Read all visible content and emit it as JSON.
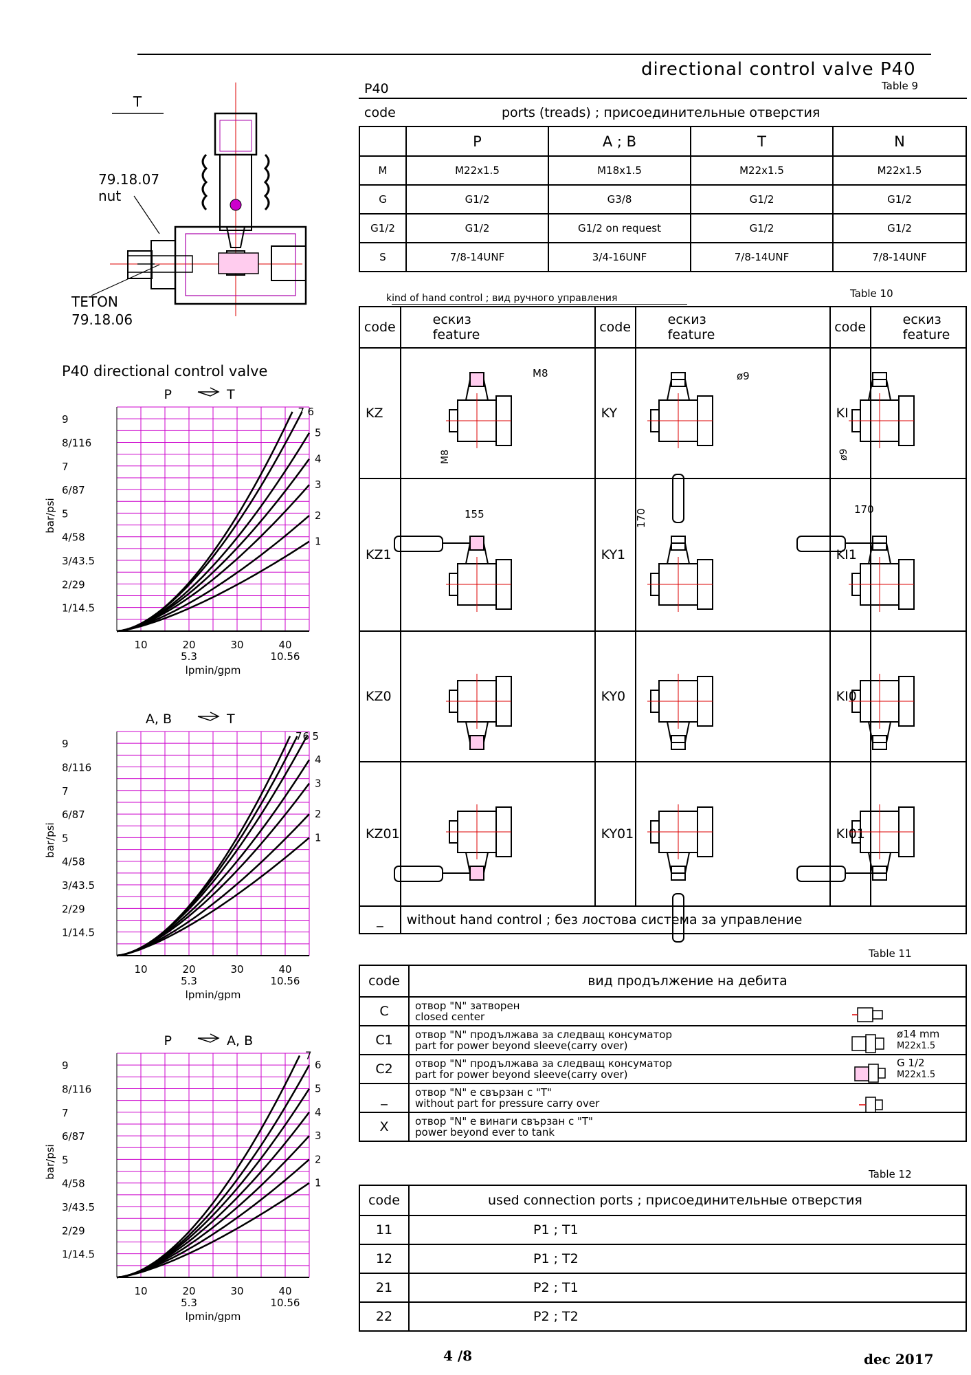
{
  "header": {
    "title": "directional control valve P40",
    "model": "P40",
    "table9_label": "Table 9"
  },
  "valve_drawing": {
    "view_label": "T",
    "nut_code": "79.18.07",
    "nut_label": "nut",
    "teton_label": "TETON",
    "teton_code": "79.18.06"
  },
  "chart_section_title": "P40 directional control valve",
  "table9": {
    "code_header": "code",
    "ports_header": "ports (treads) ;  присоединительные отверстия",
    "columns": [
      "P",
      "A ; B",
      "T",
      "N"
    ],
    "rows": [
      {
        "code": "M",
        "cells": [
          "M22x1.5",
          "M18x1.5",
          "M22x1.5",
          "M22x1.5"
        ]
      },
      {
        "code": "G",
        "cells": [
          "G1/2",
          "G3/8",
          "G1/2",
          "G1/2"
        ]
      },
      {
        "code": "G1/2",
        "cells": [
          "G1/2",
          "G1/2 on request",
          "G1/2",
          "G1/2"
        ]
      },
      {
        "code": "S",
        "cells": [
          "7/8-14UNF",
          "3/4-16UNF",
          "7/8-14UNF",
          "7/8-14UNF"
        ]
      }
    ]
  },
  "table10": {
    "label": "Table 10",
    "caption": "kind of hand control ;  вид ручного  управления",
    "col_code": "code",
    "col_sketch": "ескиз",
    "col_feature": "feature",
    "rows": [
      [
        "KZ",
        "KY",
        "KI"
      ],
      [
        "KZ1",
        "KY1",
        "KI1"
      ],
      [
        "KZ0",
        "KY0",
        "KI0"
      ],
      [
        "KZ01",
        "KY01",
        "KI01"
      ]
    ],
    "dims": {
      "m8": "M8",
      "d9": "ø9",
      "d9_v": "ø9",
      "l155": "155",
      "l170": "170",
      "l170_i": "170",
      "m8_v": "M8"
    },
    "without_code": "_",
    "without_text": "without hand control ;          без лостова система за управление"
  },
  "table11": {
    "label": "Table 11",
    "code_header": "code",
    "title": "вид продължение на дебита",
    "rows": [
      {
        "code": "C",
        "line1": "отвор \"N\" затворен",
        "line2": "closed center",
        "spec1": "",
        "spec2": ""
      },
      {
        "code": "C1",
        "line1": "отвор \"N\" продължава за следващ консуматор",
        "line2": "part for power beyond sleeve(carry over)",
        "spec1": "ø14 mm",
        "spec2": "M22x1.5"
      },
      {
        "code": "C2",
        "line1": "отвор \"N\" продължава за следващ консуматор",
        "line2": "part for power beyond sleeve(carry over)",
        "spec1": "G 1/2",
        "spec2": "M22x1.5"
      },
      {
        "code": "_",
        "line1": "отвор \"N\" е свързан с \"T\"",
        "line2": "without part for pressure carry over",
        "spec1": "",
        "spec2": ""
      },
      {
        "code": "X",
        "line1": "отвор \"N\" е винаги свързан с \"T\"",
        "line2": "power beyond ever to tank",
        "spec1": "",
        "spec2": ""
      }
    ]
  },
  "table12": {
    "label": "Table 12",
    "code_header": "code",
    "title": "used connection ports ;  присоединительные отверстия",
    "rows": [
      {
        "code": "11",
        "ports": "P1 ; T1"
      },
      {
        "code": "12",
        "ports": "P1 ; T2"
      },
      {
        "code": "21",
        "ports": "P2 ; T1"
      },
      {
        "code": "22",
        "ports": "P2 ; T2"
      }
    ]
  },
  "chart_data": [
    {
      "type": "line",
      "title": "P → T",
      "title_from": "P",
      "title_to": "T",
      "xlabel": "lpmin/gpm",
      "ylabel": "bar/psi",
      "x_ticks": [
        "10",
        "20",
        "30",
        "40"
      ],
      "x_ticks_gpm": [
        "5.3",
        "10.56"
      ],
      "y_ticks": [
        "1/14.5",
        "2/29",
        "3/43.5",
        "4/58",
        "5",
        "6/87",
        "7",
        "8/116",
        "9"
      ],
      "xlim": [
        5,
        45
      ],
      "ylim": [
        0,
        9.5
      ],
      "grid": true,
      "series": [
        {
          "name": "1",
          "x": [
            5,
            45
          ],
          "y": [
            0,
            3.8
          ],
          "curve": 1.4
        },
        {
          "name": "2",
          "x": [
            5,
            45
          ],
          "y": [
            0,
            4.9
          ],
          "curve": 1.45
        },
        {
          "name": "3",
          "x": [
            5,
            45
          ],
          "y": [
            0,
            6.2
          ],
          "curve": 1.5
        },
        {
          "name": "4",
          "x": [
            5,
            45
          ],
          "y": [
            0,
            7.3
          ],
          "curve": 1.55
        },
        {
          "name": "5",
          "x": [
            5,
            45
          ],
          "y": [
            0,
            8.4
          ],
          "curve": 1.6
        },
        {
          "name": "6",
          "x": [
            5,
            43.5
          ],
          "y": [
            0,
            9.3
          ],
          "curve": 1.65
        },
        {
          "name": "7",
          "x": [
            5,
            41.5
          ],
          "y": [
            0,
            9.3
          ],
          "curve": 1.7
        }
      ]
    },
    {
      "type": "line",
      "title": "A, B → T",
      "title_from": "A, B",
      "title_to": "T",
      "xlabel": "lpmin/gpm",
      "ylabel": "bar/psi",
      "x_ticks": [
        "10",
        "20",
        "30",
        "40"
      ],
      "x_ticks_gpm": [
        "5.3",
        "10.56"
      ],
      "y_ticks": [
        "1/14.5",
        "2/29",
        "3/43.5",
        "4/58",
        "5",
        "6/87",
        "7",
        "8/116",
        "9"
      ],
      "xlim": [
        5,
        45
      ],
      "ylim": [
        0,
        9.5
      ],
      "grid": true,
      "series": [
        {
          "name": "1",
          "x": [
            5,
            45
          ],
          "y": [
            0,
            5.0
          ],
          "curve": 1.4
        },
        {
          "name": "2",
          "x": [
            5,
            45
          ],
          "y": [
            0,
            6.0
          ],
          "curve": 1.45
        },
        {
          "name": "3",
          "x": [
            5,
            45
          ],
          "y": [
            0,
            7.3
          ],
          "curve": 1.5
        },
        {
          "name": "4",
          "x": [
            5,
            45
          ],
          "y": [
            0,
            8.3
          ],
          "curve": 1.55
        },
        {
          "name": "5",
          "x": [
            5,
            44.5
          ],
          "y": [
            0,
            9.3
          ],
          "curve": 1.6
        },
        {
          "name": "6",
          "x": [
            5,
            42.5
          ],
          "y": [
            0,
            9.3
          ],
          "curve": 1.65
        },
        {
          "name": "7",
          "x": [
            5,
            41
          ],
          "y": [
            0,
            9.3
          ],
          "curve": 1.7
        }
      ]
    },
    {
      "type": "line",
      "title": "P → A, B",
      "title_from": "P",
      "title_to": "A, B",
      "xlabel": "lpmin/gpm",
      "ylabel": "bar/psi",
      "x_ticks": [
        "10",
        "20",
        "30",
        "40"
      ],
      "x_ticks_gpm": [
        "5.3",
        "10.56"
      ],
      "y_ticks": [
        "1/14.5",
        "2/29",
        "3/43.5",
        "4/58",
        "5",
        "6/87",
        "7",
        "8/116",
        "9"
      ],
      "xlim": [
        5,
        45
      ],
      "ylim": [
        0,
        9.5
      ],
      "grid": true,
      "series": [
        {
          "name": "1",
          "x": [
            5,
            45
          ],
          "y": [
            0,
            4.0
          ],
          "curve": 1.4
        },
        {
          "name": "2",
          "x": [
            5,
            45
          ],
          "y": [
            0,
            5.0
          ],
          "curve": 1.45
        },
        {
          "name": "3",
          "x": [
            5,
            45
          ],
          "y": [
            0,
            6.0
          ],
          "curve": 1.5
        },
        {
          "name": "4",
          "x": [
            5,
            45
          ],
          "y": [
            0,
            7.0
          ],
          "curve": 1.55
        },
        {
          "name": "5",
          "x": [
            5,
            45
          ],
          "y": [
            0,
            8.0
          ],
          "curve": 1.6
        },
        {
          "name": "6",
          "x": [
            5,
            45
          ],
          "y": [
            0,
            9.0
          ],
          "curve": 1.65
        },
        {
          "name": "7",
          "x": [
            5,
            43
          ],
          "y": [
            0,
            9.4
          ],
          "curve": 1.7
        }
      ]
    }
  ],
  "footer": {
    "page": "4 /8",
    "date": "dec 2017"
  }
}
